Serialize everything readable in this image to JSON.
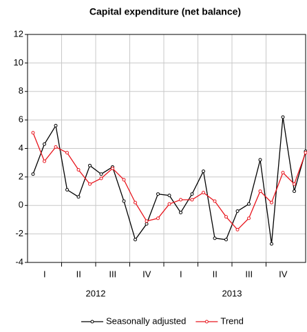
{
  "chart_data": {
    "type": "line",
    "title": "Capital expenditure (net balance)",
    "categories": [
      null,
      null,
      null,
      null,
      null,
      null,
      null,
      null,
      null,
      null,
      null,
      null,
      null,
      null,
      null,
      null,
      null,
      null,
      null,
      null,
      null,
      null,
      null,
      null,
      null
    ],
    "quarter_labels": [
      "I",
      "II",
      "III",
      "IV",
      "I",
      "II",
      "III",
      "IV"
    ],
    "year_labels": [
      "2012",
      "2013"
    ],
    "series": [
      {
        "name": "Seasonally adjusted",
        "color": "#000000",
        "values": [
          2.2,
          4.3,
          5.6,
          1.1,
          0.6,
          2.8,
          2.2,
          2.7,
          0.3,
          -2.4,
          -1.3,
          0.8,
          0.7,
          -0.5,
          0.8,
          2.4,
          -2.3,
          -2.4,
          -0.4,
          0.1,
          3.2,
          -2.7,
          6.2,
          1.0,
          3.8
        ]
      },
      {
        "name": "Trend",
        "color": "#e8141c",
        "values": [
          5.1,
          3.1,
          4.1,
          3.7,
          2.5,
          1.5,
          1.9,
          2.6,
          1.8,
          0.2,
          -1.1,
          -0.9,
          0.1,
          0.4,
          0.4,
          0.9,
          0.3,
          -0.8,
          -1.7,
          -0.9,
          1.0,
          0.2,
          2.3,
          1.5,
          3.7
        ]
      }
    ],
    "ylim": [
      -4,
      12
    ],
    "yticks": [
      -4,
      -2,
      0,
      2,
      4,
      6,
      8,
      10,
      12
    ],
    "grid": true,
    "legend": "bottom"
  }
}
